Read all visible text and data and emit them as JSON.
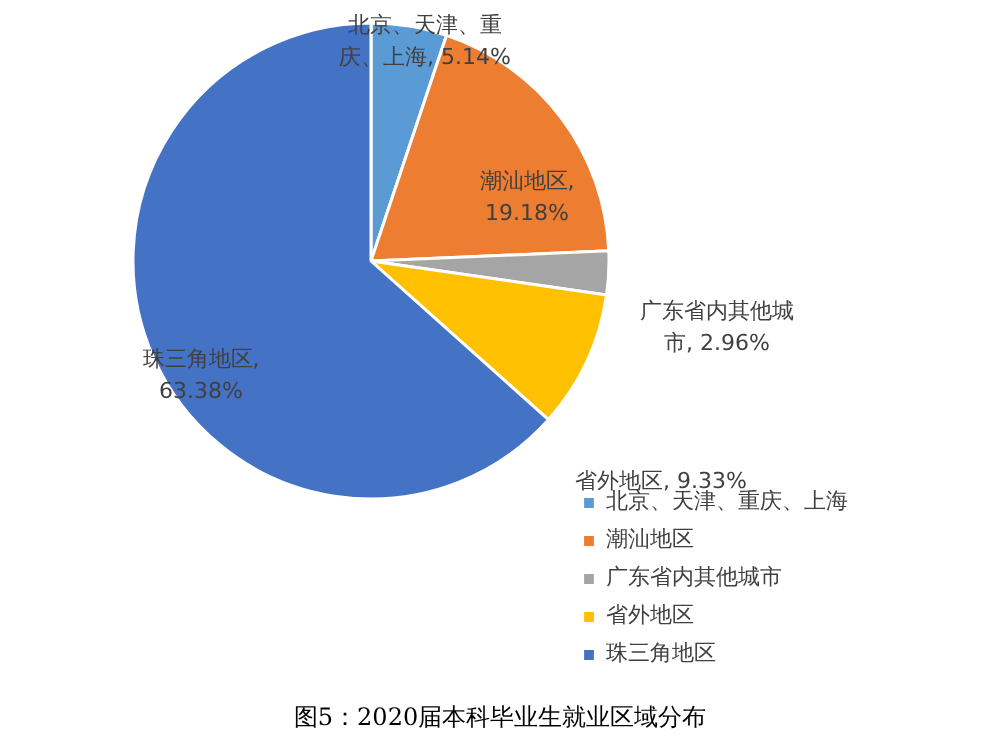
{
  "chart_data": {
    "type": "pie",
    "categories": [
      "北京、天津、重庆、上海",
      "潮汕地区",
      "广东省内其他城市",
      "省外地区",
      "珠三角地区"
    ],
    "values": [
      5.14,
      19.18,
      2.96,
      9.33,
      63.38
    ],
    "colors": [
      "#5b9bd5",
      "#ed7d31",
      "#a5a5a5",
      "#ffc000",
      "#4472c4"
    ],
    "value_labels": [
      "北京、天津、重庆、上海, 5.14%",
      "潮汕地区, 19.18%",
      "广东省内其他城市, 2.96%",
      "省外地区, 9.33%",
      "珠三角地区, 63.38%"
    ],
    "legend": "right",
    "annotations": [
      "图5：2020届本科毕业生就业区域分布"
    ]
  }
}
